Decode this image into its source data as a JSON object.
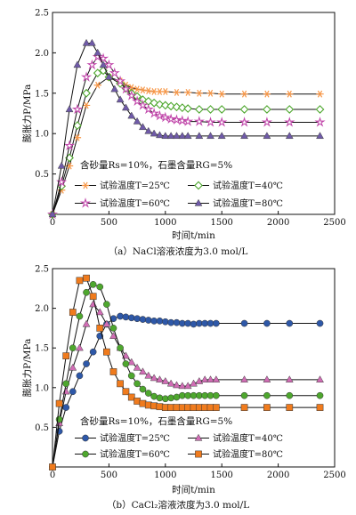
{
  "chart_data": [
    {
      "type": "line",
      "caption": "（a）NaCl溶液浓度为3.0 mol/L",
      "xlabel": "时间t/min",
      "ylabel": "膨胀力P/MPa",
      "xlim": [
        0,
        2500
      ],
      "ylim": [
        0,
        2.5
      ],
      "xticks": [
        0,
        500,
        1000,
        1500,
        2000,
        2500
      ],
      "yticks": [
        0.5,
        1.0,
        1.5,
        2.0,
        2.5
      ],
      "note": "含砂量Rs=10%，石墨含量RG=5%",
      "legend_position": "bottom-center",
      "series": [
        {
          "name": "试验温度T=25℃",
          "color": "#f79646",
          "marker": "asterisk",
          "x": [
            0,
            80,
            150,
            220,
            300,
            400,
            500,
            600,
            650,
            700,
            750,
            800,
            850,
            900,
            950,
            1000,
            1100,
            1200,
            1300,
            1400,
            1500,
            1700,
            1900,
            2100,
            2370
          ],
          "y": [
            0,
            0.3,
            0.6,
            0.95,
            1.35,
            1.6,
            1.7,
            1.65,
            1.6,
            1.57,
            1.55,
            1.54,
            1.53,
            1.52,
            1.52,
            1.52,
            1.51,
            1.51,
            1.5,
            1.5,
            1.49,
            1.49,
            1.49,
            1.49,
            1.49
          ]
        },
        {
          "name": "试验温度T=40℃",
          "color": "#4ea72e",
          "marker": "diamond",
          "x": [
            0,
            80,
            150,
            220,
            300,
            400,
            450,
            500,
            600,
            650,
            700,
            750,
            800,
            850,
            900,
            950,
            1000,
            1050,
            1100,
            1150,
            1200,
            1300,
            1400,
            1500,
            1700,
            1900,
            2100,
            2370
          ],
          "y": [
            0,
            0.35,
            0.7,
            1.1,
            1.5,
            1.75,
            1.78,
            1.7,
            1.62,
            1.56,
            1.5,
            1.46,
            1.42,
            1.4,
            1.38,
            1.36,
            1.35,
            1.34,
            1.33,
            1.32,
            1.31,
            1.3,
            1.3,
            1.3,
            1.3,
            1.3,
            1.3,
            1.3
          ]
        },
        {
          "name": "试验温度T=60℃",
          "color": "#c044a9",
          "marker": "star",
          "x": [
            0,
            80,
            150,
            220,
            300,
            350,
            400,
            450,
            500,
            550,
            600,
            650,
            700,
            750,
            800,
            850,
            900,
            950,
            1000,
            1050,
            1100,
            1150,
            1200,
            1300,
            1400,
            1500,
            1700,
            1900,
            2100,
            2370
          ],
          "y": [
            0,
            0.4,
            0.85,
            1.3,
            1.7,
            1.85,
            1.95,
            1.93,
            1.85,
            1.75,
            1.65,
            1.55,
            1.47,
            1.4,
            1.35,
            1.3,
            1.25,
            1.22,
            1.2,
            1.18,
            1.17,
            1.16,
            1.15,
            1.15,
            1.14,
            1.14,
            1.14,
            1.14,
            1.14,
            1.14
          ]
        },
        {
          "name": "试验温度T=80℃",
          "color": "#6f5aa8",
          "marker": "triangle",
          "x": [
            0,
            80,
            150,
            220,
            300,
            350,
            400,
            450,
            500,
            550,
            600,
            650,
            700,
            750,
            800,
            850,
            900,
            950,
            1000,
            1050,
            1100,
            1150,
            1200,
            1300,
            1400,
            1500,
            1700,
            1900,
            2100,
            2370
          ],
          "y": [
            0,
            0.6,
            1.3,
            1.85,
            2.12,
            2.12,
            2.0,
            1.85,
            1.7,
            1.55,
            1.42,
            1.32,
            1.22,
            1.15,
            1.08,
            1.03,
            1.0,
            0.98,
            0.97,
            0.97,
            0.97,
            0.97,
            0.97,
            0.97,
            0.97,
            0.97,
            0.97,
            0.97,
            0.97,
            0.97
          ]
        }
      ]
    },
    {
      "type": "line",
      "caption": "（b）CaCl₂溶液浓度为3.0 mol/L",
      "xlabel": "时间t/min",
      "ylabel": "膨胀力P/MPa",
      "xlim": [
        0,
        2500
      ],
      "ylim": [
        0,
        2.5
      ],
      "xticks": [
        0,
        500,
        1000,
        1500,
        2000,
        2500
      ],
      "yticks": [
        0.5,
        1.0,
        1.5,
        2.0,
        2.5
      ],
      "note": "含砂量Rs=10%，石墨含量RG=5%",
      "legend_position": "bottom-center",
      "series": [
        {
          "name": "试验温度T=25℃",
          "color": "#2e58a8",
          "marker": "circle",
          "x": [
            0,
            60,
            120,
            180,
            240,
            300,
            360,
            420,
            480,
            540,
            600,
            650,
            700,
            750,
            800,
            850,
            900,
            950,
            1000,
            1050,
            1100,
            1150,
            1200,
            1250,
            1300,
            1350,
            1400,
            1450,
            1700,
            1900,
            2100,
            2370
          ],
          "y": [
            0,
            0.45,
            0.75,
            0.95,
            1.15,
            1.3,
            1.45,
            1.65,
            1.8,
            1.87,
            1.9,
            1.89,
            1.88,
            1.87,
            1.86,
            1.85,
            1.84,
            1.84,
            1.83,
            1.82,
            1.82,
            1.81,
            1.81,
            1.8,
            1.81,
            1.81,
            1.81,
            1.81,
            1.81,
            1.81,
            1.81,
            1.81
          ]
        },
        {
          "name": "试验温度T=40℃",
          "color": "#d16db5",
          "marker": "triangle",
          "x": [
            0,
            60,
            120,
            180,
            240,
            300,
            360,
            420,
            480,
            540,
            600,
            650,
            700,
            750,
            800,
            850,
            900,
            950,
            1000,
            1050,
            1100,
            1150,
            1200,
            1250,
            1300,
            1350,
            1400,
            1450,
            1700,
            1900,
            2100,
            2370
          ],
          "y": [
            0,
            0.55,
            0.95,
            1.25,
            1.5,
            1.8,
            2.05,
            1.95,
            1.8,
            1.65,
            1.5,
            1.4,
            1.32,
            1.25,
            1.2,
            1.15,
            1.12,
            1.1,
            1.08,
            1.05,
            1.03,
            1.02,
            1.02,
            1.05,
            1.08,
            1.1,
            1.1,
            1.1,
            1.1,
            1.1,
            1.1,
            1.1
          ]
        },
        {
          "name": "试验温度T=60℃",
          "color": "#4ea72e",
          "marker": "circle",
          "x": [
            0,
            60,
            120,
            180,
            240,
            300,
            360,
            420,
            480,
            540,
            600,
            650,
            700,
            750,
            800,
            850,
            900,
            950,
            1000,
            1050,
            1100,
            1150,
            1200,
            1250,
            1300,
            1350,
            1400,
            1450,
            1700,
            1900,
            2100,
            2370
          ],
          "y": [
            0,
            0.6,
            1.05,
            1.5,
            1.9,
            2.2,
            2.3,
            2.27,
            2.05,
            1.75,
            1.5,
            1.3,
            1.15,
            1.05,
            0.98,
            0.93,
            0.89,
            0.87,
            0.86,
            0.87,
            0.88,
            0.9,
            0.9,
            0.9,
            0.9,
            0.9,
            0.9,
            0.9,
            0.9,
            0.9,
            0.9,
            0.9
          ]
        },
        {
          "name": "试验温度T=80℃",
          "color": "#f07b1d",
          "marker": "square",
          "x": [
            0,
            60,
            120,
            180,
            240,
            300,
            360,
            420,
            480,
            540,
            600,
            650,
            700,
            750,
            800,
            850,
            900,
            950,
            1000,
            1050,
            1100,
            1150,
            1200,
            1250,
            1300,
            1350,
            1400,
            1450,
            1700,
            1900,
            2100,
            2370
          ],
          "y": [
            0,
            0.8,
            1.4,
            1.95,
            2.35,
            2.38,
            2.15,
            1.75,
            1.45,
            1.2,
            1.05,
            0.95,
            0.88,
            0.83,
            0.8,
            0.78,
            0.77,
            0.76,
            0.75,
            0.75,
            0.75,
            0.75,
            0.75,
            0.75,
            0.75,
            0.75,
            0.75,
            0.75,
            0.75,
            0.75,
            0.75,
            0.75
          ]
        }
      ]
    }
  ]
}
